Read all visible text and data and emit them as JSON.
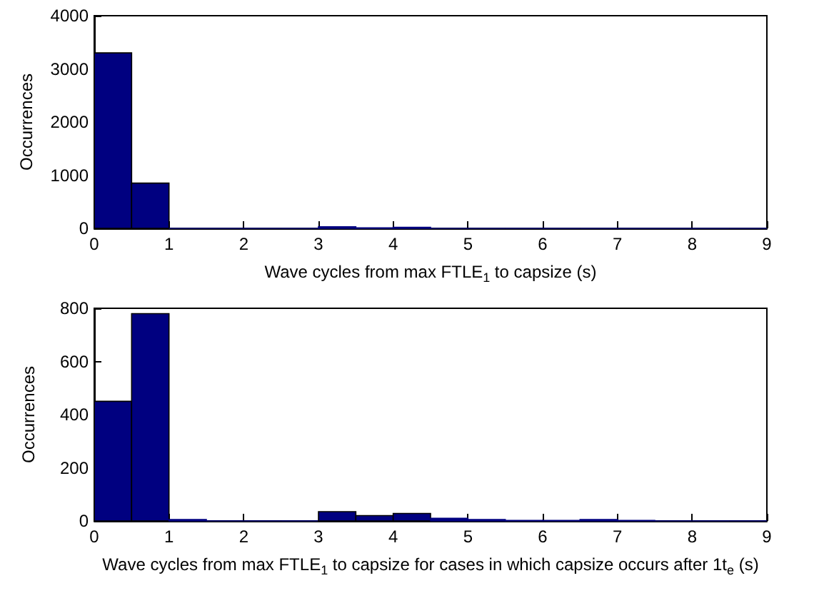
{
  "chart_data": [
    {
      "type": "histogram",
      "xlabel": "Wave cycles from max FTLE$_{1}$ to capsize (s)",
      "ylabel": "Occurrences",
      "bins": [
        0,
        0.5,
        1,
        1.5,
        2,
        2.5,
        3,
        3.5,
        4,
        4.5,
        5,
        5.5,
        6,
        6.5,
        7,
        7.5,
        8,
        8.5,
        9
      ],
      "values": [
        3300,
        850,
        0,
        0,
        0,
        0,
        30,
        10,
        20,
        0,
        0,
        0,
        0,
        0,
        0,
        0,
        0,
        0
      ],
      "color": "#000080",
      "xlim": [
        0,
        9
      ],
      "xticks": [
        0,
        1,
        2,
        3,
        4,
        5,
        6,
        7,
        8,
        9
      ],
      "ylim": [
        0,
        4000
      ],
      "yticks": [
        0,
        1000,
        2000,
        3000,
        4000
      ]
    },
    {
      "type": "histogram",
      "xlabel": "Wave cycles from max FTLE$_{1}$ to capsize for cases in which capsize occurs after 1t$_{e}$ (s)",
      "ylabel": "Occurrences",
      "bins": [
        0,
        0.5,
        1,
        1.5,
        2,
        2.5,
        3,
        3.5,
        4,
        4.5,
        5,
        5.5,
        6,
        6.5,
        7,
        7.5,
        8,
        8.5,
        9
      ],
      "values": [
        450,
        780,
        5,
        0,
        0,
        0,
        35,
        20,
        28,
        10,
        5,
        2,
        2,
        5,
        2,
        0,
        0,
        0
      ],
      "color": "#000080",
      "xlim": [
        0,
        9
      ],
      "xticks": [
        0,
        1,
        2,
        3,
        4,
        5,
        6,
        7,
        8,
        9
      ],
      "ylim": [
        0,
        800
      ],
      "yticks": [
        0,
        200,
        400,
        600,
        800
      ]
    }
  ]
}
